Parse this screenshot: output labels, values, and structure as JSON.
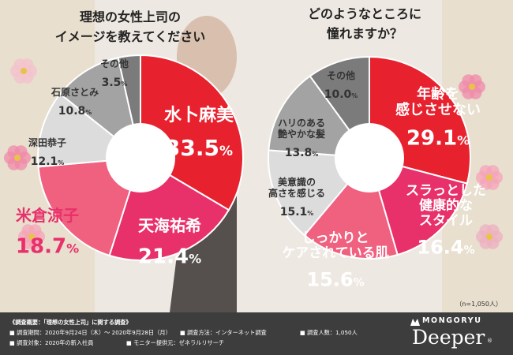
{
  "chart_data": [
    {
      "type": "pie",
      "title": [
        "理想の女性上司の",
        "イメージを教えてください"
      ],
      "slices": [
        {
          "label": [
            "水卜麻美"
          ],
          "value": 33.5,
          "color": "#e8212e"
        },
        {
          "label": [
            "天海祐希"
          ],
          "value": 21.4,
          "color": "#e8306a"
        },
        {
          "label": [
            "米倉涼子"
          ],
          "value": 18.7,
          "color": "#f0607f"
        },
        {
          "label": [
            "深田恭子"
          ],
          "value": 12.1,
          "color": "#dcdcdc"
        },
        {
          "label": [
            "石原さとみ"
          ],
          "value": 10.8,
          "color": "#a3a3a3"
        },
        {
          "label": [
            "その他"
          ],
          "value": 3.5,
          "color": "#7b7b7b"
        }
      ]
    },
    {
      "type": "pie",
      "title": [
        "どのようなところに",
        "憧れますか？"
      ],
      "slices": [
        {
          "label": [
            "年齢を",
            "感じさせない"
          ],
          "value": 29.1,
          "color": "#e8212e"
        },
        {
          "label": [
            "スラっとした",
            "健康的な",
            "スタイル"
          ],
          "value": 16.4,
          "color": "#e8306a"
        },
        {
          "label": [
            "しっかりと",
            "ケアされている肌"
          ],
          "value": 15.6,
          "color": "#f0607f"
        },
        {
          "label": [
            "美意識の",
            "高さを感じる"
          ],
          "value": 15.1,
          "color": "#dcdcdc"
        },
        {
          "label": [
            "ハリのある",
            "艶やかな髪"
          ],
          "value": 13.8,
          "color": "#a3a3a3"
        },
        {
          "label": [
            "その他"
          ],
          "value": 10.0,
          "color": "#7b7b7b"
        }
      ],
      "note": "（n=1,050人）"
    }
  ],
  "footer": {
    "heading": "《調査概要：「理想の女性上司」に関する調査》",
    "period": "■ 調査期間：2020年9月24日（木）～ 2020年9月28日（月）",
    "method": "■ 調査方法：インターネット調査",
    "count": "■ 調査人数：1,050人",
    "target": "■ 調査対象：2020年の新入社員",
    "monitor": "■ モニター提供元：ゼネラルリサーチ"
  },
  "logo": {
    "top": "MONGORYU",
    "main": "Deeper",
    "mark": "®"
  }
}
